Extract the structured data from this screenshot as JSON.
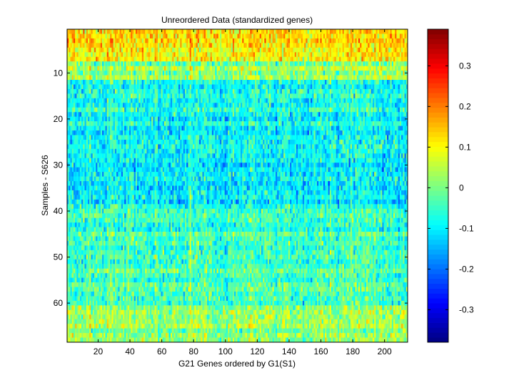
{
  "chart_data": {
    "type": "heatmap",
    "title": "Unreordered Data (standardized genes)",
    "xlabel": "G21 Genes ordered by G1(S1)",
    "ylabel": "Samples - S626",
    "xlim": [
      0.5,
      214.5
    ],
    "ylim": [
      0.5,
      68.5
    ],
    "n_columns": 214,
    "n_rows": 68,
    "x_ticks": [
      20,
      40,
      60,
      80,
      100,
      120,
      140,
      160,
      180,
      200
    ],
    "y_ticks": [
      10,
      20,
      30,
      40,
      50,
      60
    ],
    "colormap": "jet",
    "color_limits": [
      -0.38,
      0.39
    ],
    "colorbar_ticks": [
      -0.3,
      -0.2,
      -0.1,
      0,
      0.1,
      0.2,
      0.3
    ],
    "row_band_means": [
      {
        "rows": [
          1,
          7
        ],
        "mean": 0.12
      },
      {
        "rows": [
          8,
          11
        ],
        "mean": 0.03
      },
      {
        "rows": [
          12,
          18
        ],
        "mean": -0.08
      },
      {
        "rows": [
          19,
          39
        ],
        "mean": -0.09
      },
      {
        "rows": [
          40,
          47
        ],
        "mean": -0.05
      },
      {
        "rows": [
          48,
          55
        ],
        "mean": -0.04
      },
      {
        "rows": [
          56,
          60
        ],
        "mean": -0.03
      },
      {
        "rows": [
          61,
          68
        ],
        "mean": 0.02
      }
    ]
  }
}
